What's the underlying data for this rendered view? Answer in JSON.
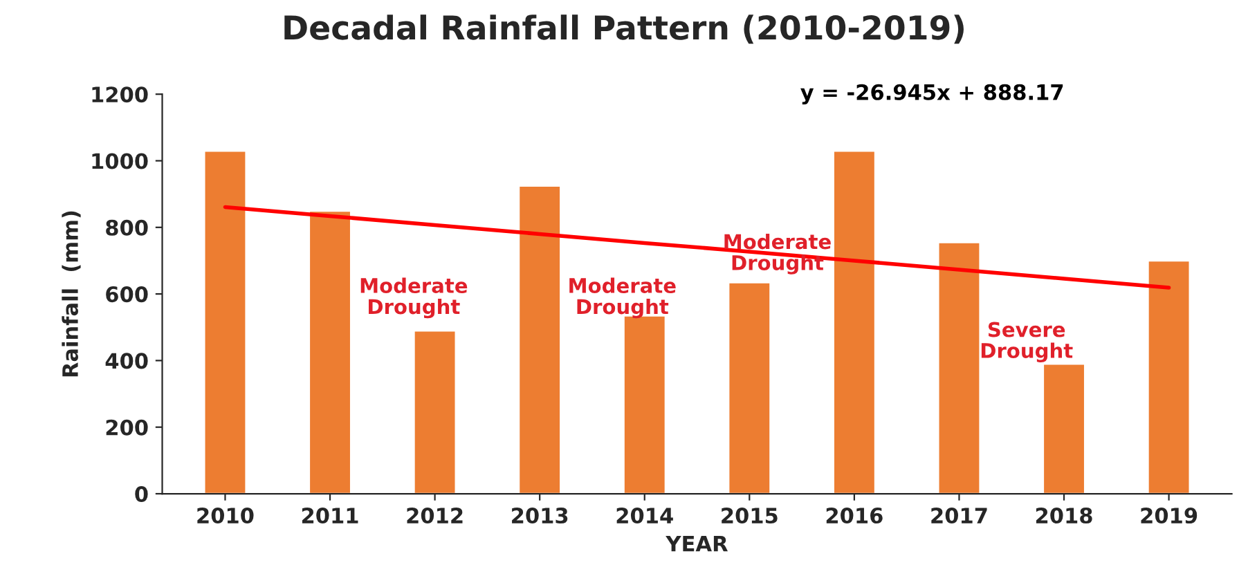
{
  "chart_data": {
    "type": "bar",
    "title": "Decadal Rainfall Pattern (2010-2019)",
    "xlabel": "YEAR",
    "ylabel": "Rainfall  (mm)",
    "categories": [
      "2010",
      "2011",
      "2012",
      "2013",
      "2014",
      "2015",
      "2016",
      "2017",
      "2018",
      "2019"
    ],
    "series": [
      {
        "color": "#ed7d31",
        "values": [
          1030,
          850,
          490,
          925,
          535,
          635,
          1030,
          755,
          390,
          700
        ]
      },
      {
        "type": "line",
        "color": "#ff0000",
        "values": [
          861,
          834,
          807,
          780,
          753,
          727,
          700,
          673,
          646,
          619
        ]
      }
    ],
    "ylim": [
      0,
      1200
    ],
    "yticks": [
      0,
      200,
      400,
      600,
      800,
      1000,
      1200
    ],
    "grid": false,
    "legend": false,
    "annotations": [
      "y = -26.945x + 888.17",
      "Moderate\nDrought",
      "Moderate\nDrought",
      "Moderate\nDrought",
      "Severe\nDrought"
    ]
  }
}
